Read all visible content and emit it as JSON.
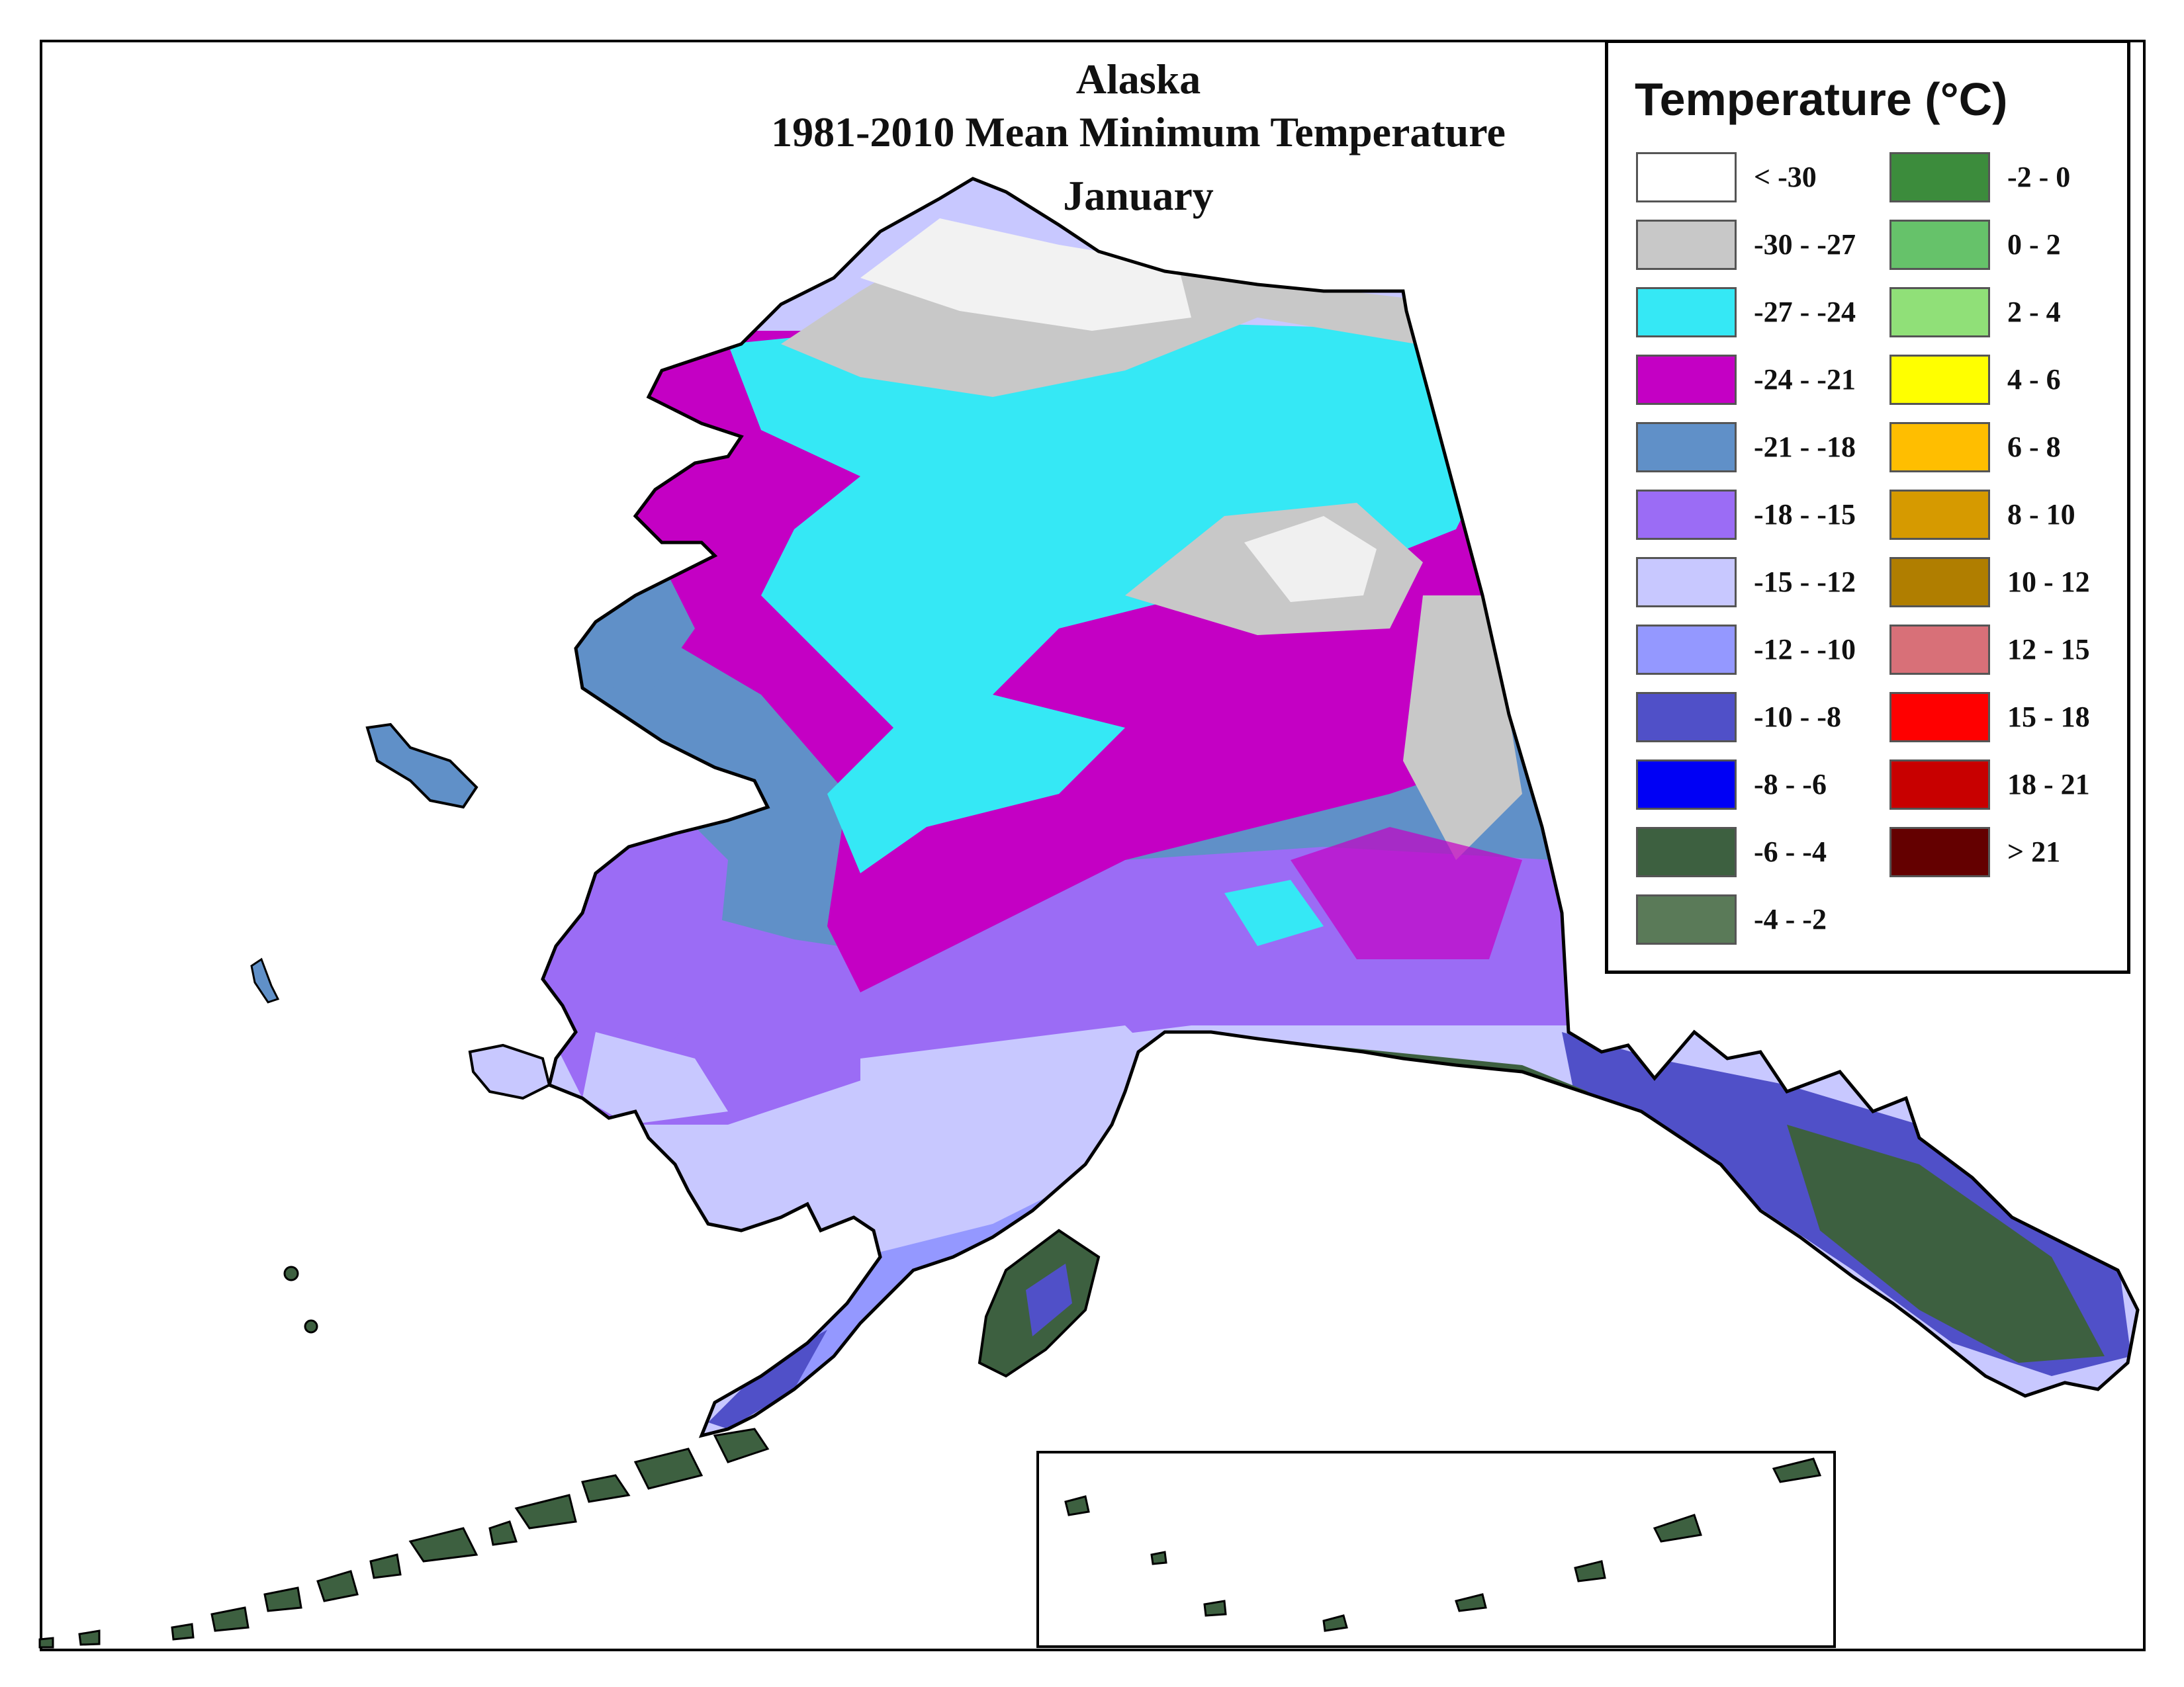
{
  "title": {
    "line1": "Alaska",
    "line2": "1981-2010 Mean Minimum Temperature",
    "line3": "January"
  },
  "legend": {
    "title": "Temperature (°C)",
    "items": [
      {
        "label": "< -30",
        "color": "#ffffff"
      },
      {
        "label": "-30 - -27",
        "color": "#c8c8c8"
      },
      {
        "label": "-27 - -24",
        "color": "#35e8f5"
      },
      {
        "label": "-24 - -21",
        "color": "#c400c4"
      },
      {
        "label": "-21 - -18",
        "color": "#6090c8"
      },
      {
        "label": "-18 - -15",
        "color": "#9b6cf5"
      },
      {
        "label": "-15 - -12",
        "color": "#c8c8ff"
      },
      {
        "label": "-12 - -10",
        "color": "#9498ff"
      },
      {
        "label": "-10 - -8",
        "color": "#5050c8"
      },
      {
        "label": "-8 - -6",
        "color": "#0000f5"
      },
      {
        "label": "-6 - -4",
        "color": "#3d6040"
      },
      {
        "label": "-4 - -2",
        "color": "#5a7a58"
      },
      {
        "label": "-2 - 0",
        "color": "#3c8c3c"
      },
      {
        "label": "0 - 2",
        "color": "#66c26a"
      },
      {
        "label": "2 - 4",
        "color": "#90e078"
      },
      {
        "label": "4 - 6",
        "color": "#ffff00"
      },
      {
        "label": "6 - 8",
        "color": "#ffbe00"
      },
      {
        "label": "8 - 10",
        "color": "#d69a00"
      },
      {
        "label": "10 - 12",
        "color": "#b07e00"
      },
      {
        "label": "12 - 15",
        "color": "#d87078"
      },
      {
        "label": "15 - 18",
        "color": "#ff0000"
      },
      {
        "label": "18 - 21",
        "color": "#c80000"
      },
      {
        "label": "> 21",
        "color": "#640000"
      }
    ]
  }
}
